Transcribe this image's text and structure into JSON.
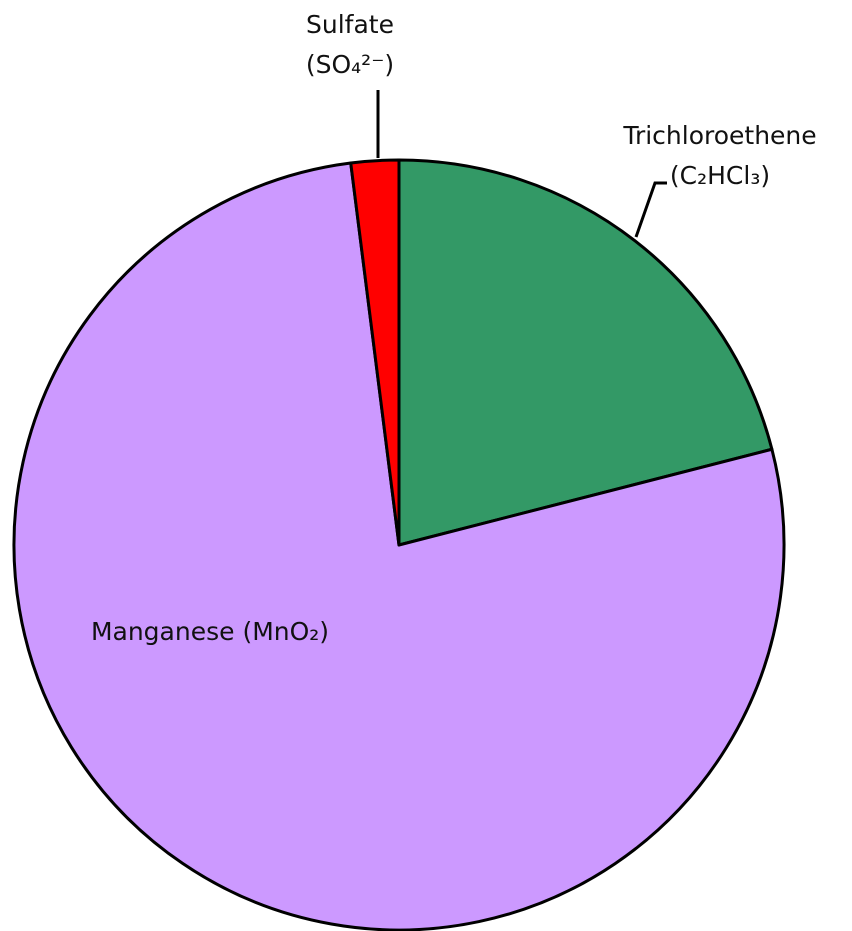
{
  "chart_data": {
    "type": "pie",
    "categories": [
      "Trichloroethene (C₂HCl₃)",
      "Manganese (MnO₂)",
      "Sulfate (SO₄²⁻)"
    ],
    "values": [
      21,
      77,
      2
    ],
    "colors": [
      "#339966",
      "#cc99ff",
      "#ff0000"
    ]
  }
}
